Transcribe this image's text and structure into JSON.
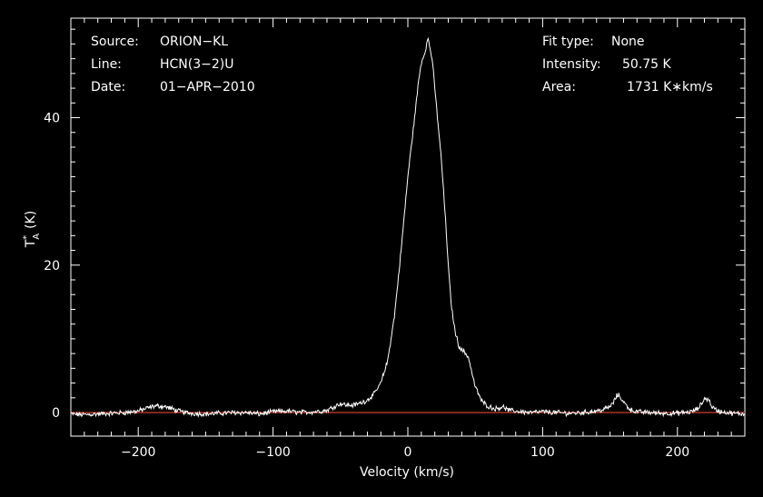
{
  "chart_data": {
    "type": "line",
    "title": "",
    "xlabel": "Velocity (km/s)",
    "ylabel": "T*A (K)",
    "ylabel_parts": {
      "main": "T",
      "sup": "*",
      "sub": "A",
      "unit": "(K)"
    },
    "xlim": [
      -250,
      250
    ],
    "ylim": [
      -3.2,
      53.5
    ],
    "xticks": [
      -200,
      -100,
      0,
      100,
      200
    ],
    "xtick_labels": [
      "−200",
      "−100",
      "0",
      "100",
      "200"
    ],
    "yticks": [
      0,
      20,
      40
    ],
    "ytick_labels": [
      "0",
      "20",
      "40"
    ],
    "grid": false,
    "legend": "none",
    "annotations": {
      "left": [
        {
          "label": "Source:",
          "value": "ORION−KL"
        },
        {
          "label": "Line:",
          "value": "HCN(3−2)U"
        },
        {
          "label": "Date:",
          "value": "01−APR−2010"
        }
      ],
      "right": [
        {
          "label": "Fit type:",
          "value": "None"
        },
        {
          "label": "Intensity:",
          "value": "50.75 K"
        },
        {
          "label": "Area:",
          "value": "1731 K∗km/s"
        }
      ]
    },
    "baseline": {
      "y": 0,
      "color": "#c0392b"
    },
    "colors": {
      "background": "#000000",
      "axes": "#ffffff",
      "spectrum": "#ffffff"
    },
    "series": [
      {
        "x": [
          -250,
          -240,
          -230,
          -220,
          -210,
          -200,
          -195,
          -190,
          -185,
          -180,
          -175,
          -170,
          -165,
          -160,
          -150,
          -140,
          -130,
          -120,
          -110,
          -100,
          -90,
          -80,
          -70,
          -60,
          -55,
          -50,
          -45,
          -40,
          -35,
          -30,
          -25,
          -20,
          -15,
          -10,
          -5,
          0,
          5,
          8,
          10,
          12,
          15,
          18,
          20,
          22,
          25,
          28,
          30,
          32,
          35,
          38,
          40,
          42,
          45,
          48,
          50,
          55,
          60,
          65,
          70,
          75,
          80,
          90,
          100,
          110,
          120,
          130,
          140,
          145,
          150,
          153,
          155,
          157,
          160,
          165,
          170,
          180,
          190,
          200,
          205,
          210,
          215,
          218,
          220,
          223,
          226,
          230,
          240,
          250
        ],
        "y": [
          -0.2,
          -0.3,
          -0.2,
          -0.1,
          0.0,
          0.2,
          0.5,
          0.8,
          0.9,
          0.8,
          0.5,
          0.2,
          0.0,
          -0.1,
          -0.2,
          -0.1,
          0.0,
          0.0,
          -0.2,
          0.1,
          0.2,
          0.0,
          0.1,
          0.3,
          0.8,
          1.2,
          1.0,
          1.0,
          1.3,
          1.7,
          2.5,
          4.0,
          7.0,
          13.0,
          22.0,
          32.0,
          40.0,
          45.0,
          47.5,
          48.5,
          50.75,
          48.0,
          44.0,
          40.0,
          34.0,
          26.0,
          20.0,
          15.0,
          11.0,
          9.0,
          8.5,
          8.2,
          7.5,
          5.0,
          3.5,
          1.5,
          0.8,
          0.5,
          0.8,
          0.3,
          0.2,
          0.0,
          0.1,
          0.0,
          -0.1,
          0.0,
          0.2,
          0.4,
          0.8,
          1.5,
          2.3,
          2.3,
          1.4,
          0.4,
          0.1,
          0.0,
          -0.1,
          -0.1,
          0.0,
          0.1,
          0.5,
          1.2,
          1.9,
          1.8,
          0.7,
          0.2,
          -0.1,
          -0.2
        ]
      }
    ]
  }
}
